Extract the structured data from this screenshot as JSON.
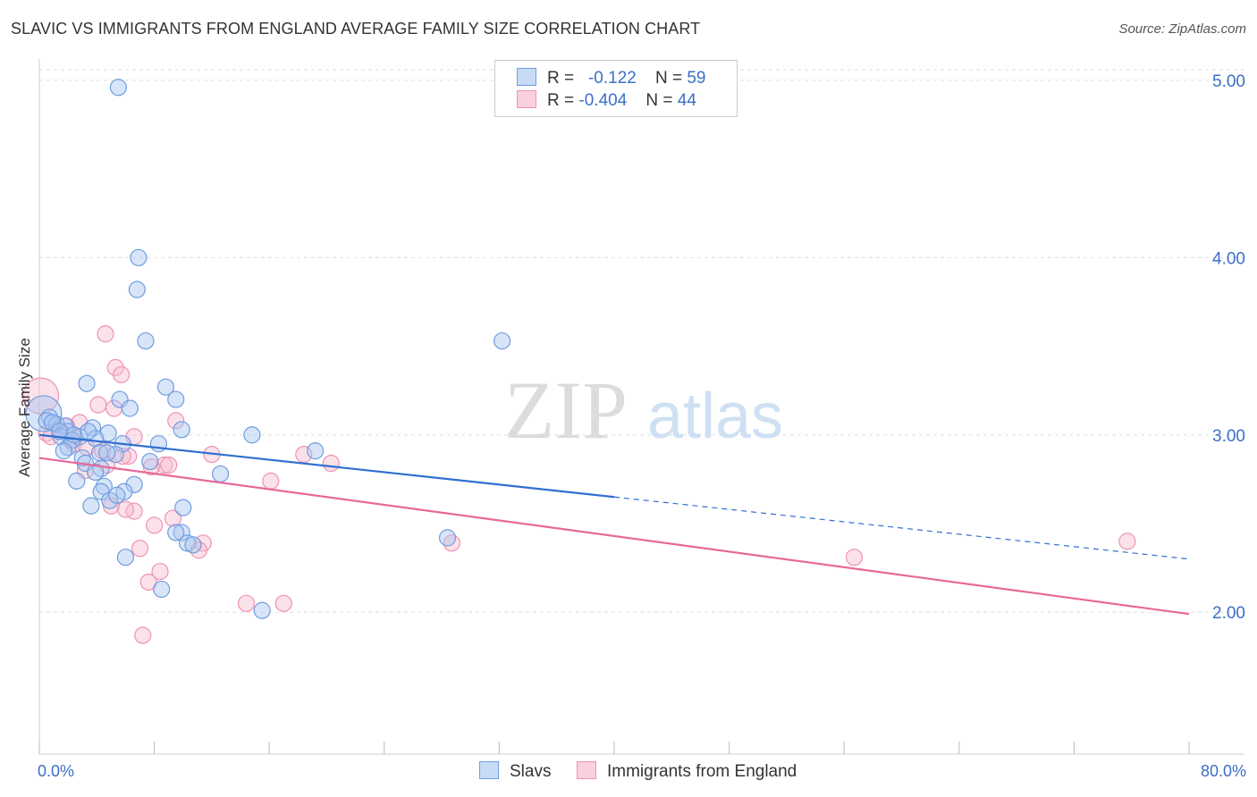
{
  "title": "SLAVIC VS IMMIGRANTS FROM ENGLAND AVERAGE FAMILY SIZE CORRELATION CHART",
  "source": "Source: ZipAtlas.com",
  "watermark": {
    "zip": "ZIP",
    "atlas": "atlas"
  },
  "legend": {
    "slavs": {
      "r_label": "R =",
      "r_value": "-0.122",
      "n_label": "N =",
      "n_value": "59"
    },
    "england": {
      "r_label": "R =",
      "r_value": "-0.404",
      "n_label": "N =",
      "n_value": "44"
    }
  },
  "bottom_legend": {
    "slavs": "Slavs",
    "england": "Immigrants from England"
  },
  "colors": {
    "slavs_fill": "#a8c6f0",
    "slavs_stroke": "#6f9de0",
    "slavs_line": "#2f6fd1",
    "england_fill": "#f6bcd0",
    "england_stroke": "#ee93b2",
    "england_line": "#e8689a",
    "grid": "#dddddd",
    "tick_text": "#3b6fc7"
  },
  "chart_data": {
    "type": "scatter",
    "xlabel": "",
    "ylabel": "Average Family Size",
    "xlim": [
      0,
      80
    ],
    "ylim": [
      1.2,
      5.1
    ],
    "x_tick_labels": [
      "0.0%",
      "80.0%"
    ],
    "y_ticks": [
      2.0,
      3.0,
      4.0,
      5.0
    ],
    "y_tick_labels": [
      "2.00",
      "3.00",
      "4.00",
      "5.00"
    ],
    "series": [
      {
        "name": "Slavs",
        "points": [
          [
            5.5,
            4.96
          ],
          [
            6.9,
            4.0
          ],
          [
            6.8,
            3.82
          ],
          [
            7.4,
            3.53
          ],
          [
            32.2,
            3.53
          ],
          [
            3.3,
            3.29
          ],
          [
            8.8,
            3.27
          ],
          [
            5.6,
            3.2
          ],
          [
            9.5,
            3.2
          ],
          [
            6.3,
            3.15
          ],
          [
            0.3,
            3.12
          ],
          [
            0.7,
            3.1
          ],
          [
            0.5,
            3.08
          ],
          [
            1.2,
            3.06
          ],
          [
            1.8,
            3.05
          ],
          [
            3.7,
            3.04
          ],
          [
            9.9,
            3.03
          ],
          [
            2.0,
            3.02
          ],
          [
            4.8,
            3.01
          ],
          [
            14.8,
            3.0
          ],
          [
            1.5,
            2.99
          ],
          [
            2.8,
            2.99
          ],
          [
            3.9,
            2.98
          ],
          [
            2.3,
            2.97
          ],
          [
            5.8,
            2.95
          ],
          [
            2.0,
            2.93
          ],
          [
            1.7,
            2.91
          ],
          [
            19.2,
            2.91
          ],
          [
            4.2,
            2.9
          ],
          [
            5.3,
            2.89
          ],
          [
            3.0,
            2.87
          ],
          [
            7.7,
            2.85
          ],
          [
            3.2,
            2.84
          ],
          [
            4.3,
            2.81
          ],
          [
            3.9,
            2.79
          ],
          [
            12.6,
            2.78
          ],
          [
            2.6,
            2.74
          ],
          [
            6.6,
            2.72
          ],
          [
            4.5,
            2.71
          ],
          [
            4.3,
            2.68
          ],
          [
            5.9,
            2.68
          ],
          [
            4.9,
            2.63
          ],
          [
            3.6,
            2.6
          ],
          [
            10.0,
            2.59
          ],
          [
            28.4,
            2.42
          ],
          [
            9.9,
            2.45
          ],
          [
            9.5,
            2.45
          ],
          [
            10.3,
            2.39
          ],
          [
            10.7,
            2.38
          ],
          [
            6.0,
            2.31
          ],
          [
            8.5,
            2.13
          ],
          [
            15.5,
            2.01
          ],
          [
            0.9,
            3.07
          ],
          [
            2.4,
            3.0
          ],
          [
            4.7,
            2.9
          ],
          [
            1.4,
            3.02
          ],
          [
            3.4,
            3.02
          ],
          [
            5.4,
            2.66
          ],
          [
            8.3,
            2.95
          ]
        ]
      },
      {
        "name": "Immigrants from England",
        "points": [
          [
            0.1,
            3.22
          ],
          [
            4.6,
            3.57
          ],
          [
            5.3,
            3.38
          ],
          [
            5.7,
            3.34
          ],
          [
            4.1,
            3.17
          ],
          [
            5.2,
            3.15
          ],
          [
            9.5,
            3.08
          ],
          [
            2.8,
            3.07
          ],
          [
            0.5,
            3.01
          ],
          [
            1.4,
            3.03
          ],
          [
            6.6,
            2.99
          ],
          [
            2.2,
            2.97
          ],
          [
            2.4,
            2.95
          ],
          [
            3.3,
            2.93
          ],
          [
            4.4,
            2.91
          ],
          [
            12.0,
            2.89
          ],
          [
            18.4,
            2.89
          ],
          [
            6.2,
            2.88
          ],
          [
            4.7,
            2.83
          ],
          [
            8.7,
            2.83
          ],
          [
            20.3,
            2.84
          ],
          [
            7.8,
            2.82
          ],
          [
            3.2,
            2.8
          ],
          [
            16.1,
            2.74
          ],
          [
            5.0,
            2.6
          ],
          [
            6.6,
            2.57
          ],
          [
            6.0,
            2.58
          ],
          [
            8.0,
            2.49
          ],
          [
            9.3,
            2.53
          ],
          [
            11.4,
            2.39
          ],
          [
            7.0,
            2.36
          ],
          [
            11.1,
            2.35
          ],
          [
            28.7,
            2.39
          ],
          [
            56.7,
            2.31
          ],
          [
            75.7,
            2.4
          ],
          [
            8.4,
            2.23
          ],
          [
            7.6,
            2.17
          ],
          [
            14.4,
            2.05
          ],
          [
            17.0,
            2.05
          ],
          [
            7.2,
            1.87
          ],
          [
            9.0,
            2.83
          ],
          [
            1.9,
            3.05
          ],
          [
            5.8,
            2.88
          ],
          [
            0.8,
            2.99
          ]
        ]
      }
    ],
    "trend_lines": [
      {
        "name": "Slavs",
        "solid": {
          "x": [
            0,
            40
          ],
          "y": [
            3.0,
            2.65
          ]
        },
        "dashed": {
          "x": [
            40,
            80
          ],
          "y": [
            2.65,
            2.3
          ]
        }
      },
      {
        "name": "Immigrants from England",
        "solid": {
          "x": [
            0,
            80
          ],
          "y": [
            2.87,
            1.99
          ]
        }
      }
    ]
  }
}
